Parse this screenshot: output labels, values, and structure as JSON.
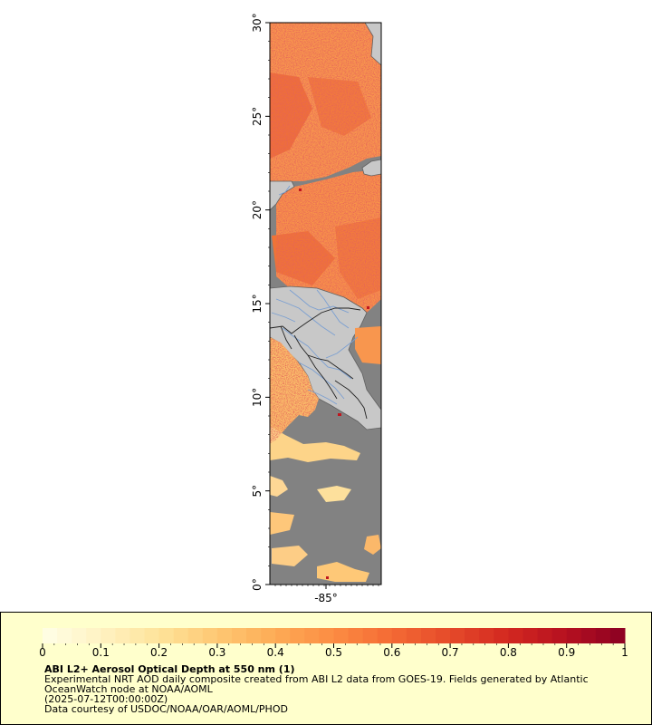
{
  "map": {
    "lat_ticks": [
      "0°",
      "5°",
      "10°",
      "15°",
      "20°",
      "25°",
      "30°"
    ],
    "lon_ticks": [
      "-85°"
    ],
    "lat_range": [
      0,
      30
    ],
    "lon_center": -85,
    "land_color": "#c8c8c8",
    "nodata_color": "#828282",
    "coastline_color": "#606060",
    "border_color": "#222222",
    "river_color": "#7b9fd1"
  },
  "colorbar": {
    "tick_labels": [
      "0",
      "0.1",
      "0.2",
      "0.3",
      "0.4",
      "0.5",
      "0.6",
      "0.7",
      "0.8",
      "0.9",
      "1"
    ],
    "range": [
      0,
      1
    ],
    "colors": [
      "#ffffe6",
      "#fff2c2",
      "#fee39a",
      "#fec873",
      "#fdab55",
      "#fc8c43",
      "#f46a34",
      "#e54a2a",
      "#d32820",
      "#b51020",
      "#8b0022"
    ]
  },
  "caption": {
    "title": "ABI L2+ Aerosol Optical Depth at 550 nm (1)",
    "line1": "Experimental NRT AOD daily composite created from ABI L2 data from GOES-19. Fields generated by Atlantic",
    "line2": "OceanWatch node at NOAA/AOML",
    "line3": "(2025-07-12T00:00:00Z)",
    "line4": "Data courtesy of USDOC/NOAA/OAR/AOML/PHOD"
  }
}
